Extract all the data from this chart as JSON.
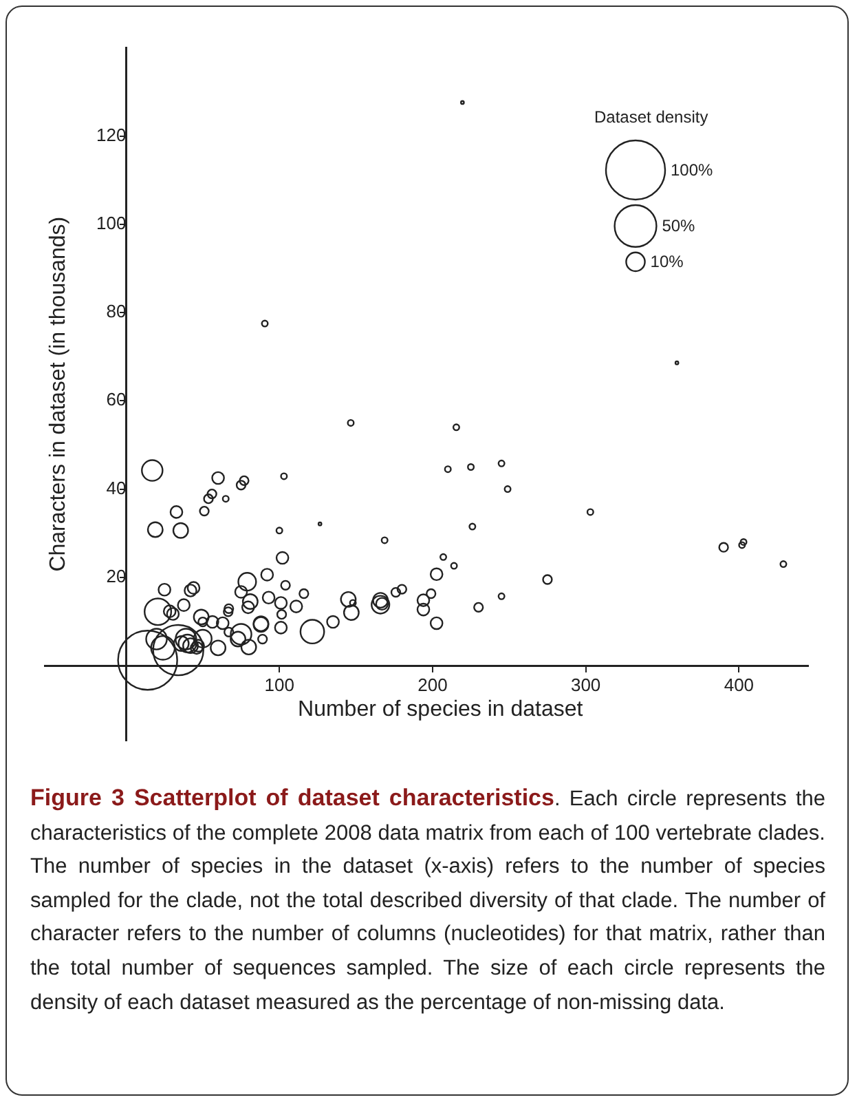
{
  "chart_data": {
    "type": "bubble",
    "xlabel": "Number of species in dataset",
    "ylabel": "Characters in dataset (in thousands)",
    "legend_title": "Dataset density",
    "size_legend": [
      {
        "value": 100,
        "label": "100%"
      },
      {
        "value": 50,
        "label": "50%"
      },
      {
        "value": 10,
        "label": "10%"
      }
    ],
    "xlim": [
      -53,
      445
    ],
    "ylim": [
      -17,
      140
    ],
    "xticks": [
      100,
      200,
      300,
      400
    ],
    "yticks": [
      20,
      40,
      60,
      80,
      100,
      120
    ],
    "grid": false,
    "series": [
      {
        "color": "#222222",
        "x": [
          90.5,
          146.6,
          219.5,
          359.5,
          215.5,
          210,
          225,
          245,
          249,
          303,
          226,
          168.7,
          207,
          214,
          202.6,
          275,
          245,
          230,
          180,
          176,
          199,
          194,
          194,
          202.6,
          167,
          390,
          403,
          402,
          429,
          103,
          100,
          126.5,
          102,
          92,
          104,
          116,
          93,
          101,
          111,
          101.5,
          145,
          147,
          148,
          166,
          166,
          135,
          121.5,
          101,
          88,
          17,
          60,
          77,
          75,
          56,
          53.7,
          65,
          32.8,
          51,
          19,
          35.6,
          25,
          42,
          44,
          79,
          75,
          81,
          79.6,
          67,
          66.6,
          20.7,
          28.4,
          30.5,
          37.6,
          49,
          50,
          56.3,
          63,
          67,
          75,
          73,
          80,
          88,
          89,
          60,
          19.8,
          24,
          34,
          14,
          36,
          39,
          42,
          46,
          40,
          50,
          47
        ],
        "values": [
          77.5,
          55,
          127.6,
          68.6,
          54,
          44.5,
          45,
          45.8,
          40,
          34.8,
          31.5,
          28.4,
          24.6,
          22.6,
          20.7,
          19.5,
          15.7,
          13.2,
          17.3,
          16.6,
          16.3,
          14.8,
          12.7,
          9.6,
          14,
          26.8,
          28,
          27.3,
          23,
          42.9,
          30.6,
          32.1,
          24.4,
          20.6,
          18.2,
          16.3,
          15.4,
          14.2,
          13.4,
          11.6,
          15,
          12,
          14.2,
          14.8,
          13.8,
          9.9,
          7.7,
          8.6,
          9.5,
          44.2,
          42.5,
          41.9,
          40.9,
          38.9,
          37.8,
          37.8,
          34.8,
          35,
          30.8,
          30.6,
          17.2,
          17,
          17.6,
          19,
          16.7,
          14.5,
          13.2,
          12.9,
          12.2,
          12.2,
          12.3,
          11.7,
          13.7,
          11,
          9.9,
          9.9,
          9.6,
          7.6,
          7.1,
          6,
          4.2,
          9.3,
          6,
          4,
          6,
          4,
          3.5,
          1.2,
          5,
          6,
          4.5,
          4,
          5,
          6.1,
          4.5
        ],
        "sizes": [
          1,
          1,
          0.25,
          0.25,
          1,
          1,
          1,
          1,
          1,
          1,
          1,
          1,
          1,
          1,
          4,
          2.25,
          1,
          2.25,
          2.25,
          2.25,
          2.25,
          4,
          4,
          4,
          4,
          2.25,
          1,
          1,
          1,
          1,
          1,
          0.25,
          4,
          4,
          2.25,
          2.25,
          4,
          4,
          4,
          2.25,
          6.25,
          6.25,
          1,
          6.25,
          9,
          4,
          16,
          4,
          6.25,
          12.25,
          4,
          2.25,
          2.25,
          2.25,
          2.25,
          1,
          4,
          2.25,
          6.25,
          6.25,
          4,
          4,
          4,
          9,
          4,
          6.25,
          4,
          2.25,
          2.25,
          20.25,
          4,
          4,
          4,
          6.25,
          2.25,
          4,
          4,
          2.25,
          12.25,
          6.25,
          6.25,
          6.25,
          2.25,
          6.25,
          12.25,
          16,
          72.25,
          100,
          6.25,
          12.25,
          6.25,
          4,
          9,
          9,
          4
        ]
      }
    ],
    "annotations": [
      "Figure 3 Scatterplot of dataset characteristics",
      ". Each circle represents the characteristics of the complete 2008 data matrix from each of 100 vertebrate clades. The number of species in the dataset (x-axis) refers to the number of species sampled for the clade, not the total described diversity of that clade. The number of character refers to the number of columns (nucleotides) for that matrix, rather than the total number of sequences sampled. The size of each circle represents the density of each dataset measured as the percentage of non-missing data."
    ]
  }
}
